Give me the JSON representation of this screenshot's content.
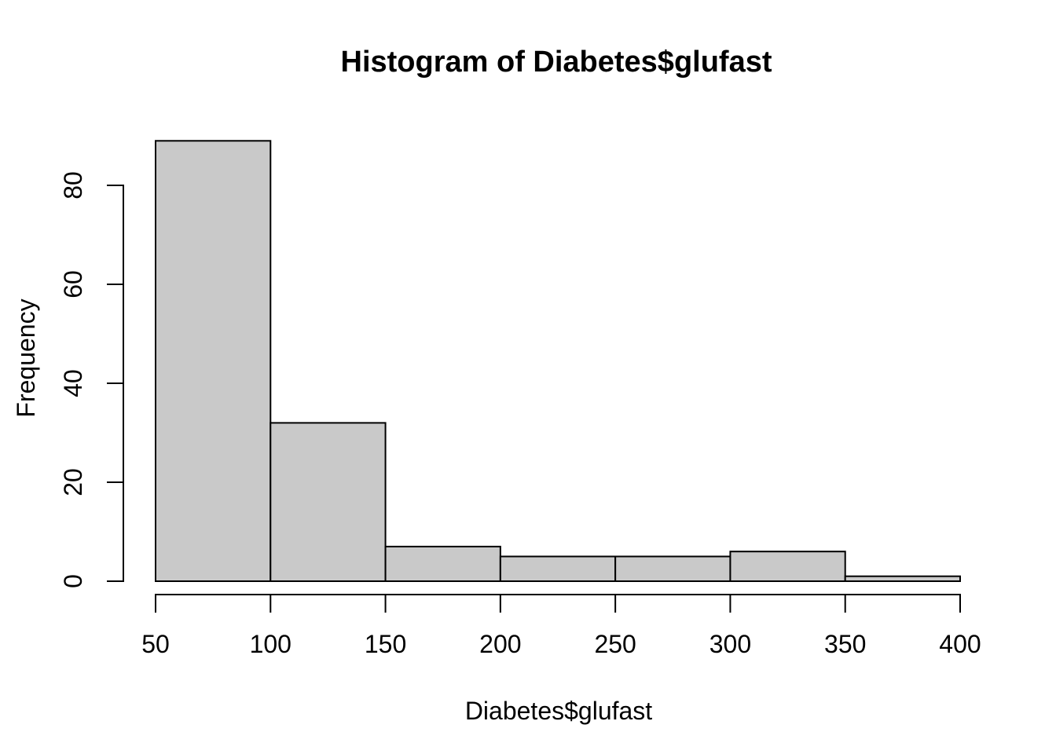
{
  "figure": {
    "background_color": "#FFFFFF"
  },
  "chart_data": {
    "type": "bar",
    "subtype": "histogram",
    "title": "Histogram of Diabetes$glufast",
    "xlabel": "Diabetes$glufast",
    "ylabel": "Frequency",
    "bin_breaks": [
      50,
      100,
      150,
      200,
      250,
      300,
      350,
      400
    ],
    "bin_labels": [
      "50-100",
      "100-150",
      "150-200",
      "200-250",
      "250-300",
      "300-350",
      "350-400"
    ],
    "counts": [
      89,
      32,
      7,
      5,
      5,
      6,
      1
    ],
    "x_ticks": [
      50,
      100,
      150,
      200,
      250,
      300,
      350,
      400
    ],
    "y_ticks": [
      0,
      20,
      40,
      60,
      80
    ],
    "xlim": [
      50,
      400
    ],
    "ylim": [
      0,
      89
    ],
    "grid": false,
    "legend_position": "none",
    "bar_fill_color": "#C9C9C9",
    "bar_border_color": "#000000",
    "axis_color": "#000000",
    "text_color": "#000000"
  }
}
